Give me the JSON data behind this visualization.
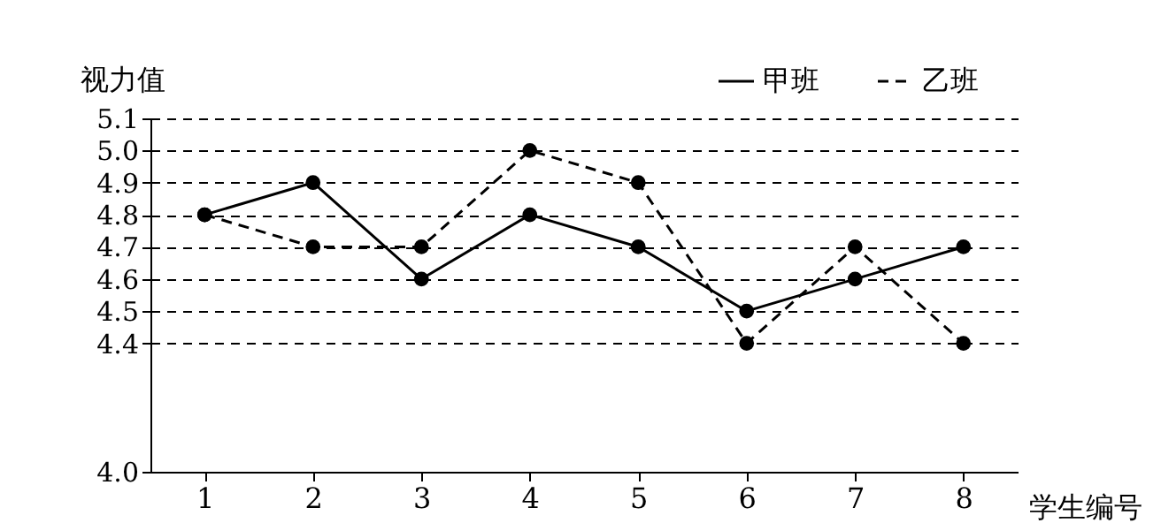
{
  "chart_data": {
    "type": "line",
    "xlabel": "学生编号",
    "ylabel": "视力值",
    "categories": [
      "1",
      "2",
      "3",
      "4",
      "5",
      "6",
      "7",
      "8"
    ],
    "series": [
      {
        "name": "甲班",
        "color": "#000000",
        "line_style": "solid",
        "values": [
          4.8,
          4.9,
          4.6,
          4.8,
          4.7,
          4.5,
          4.6,
          4.7
        ]
      },
      {
        "name": "乙班",
        "color": "#000000",
        "line_style": "dashed",
        "values": [
          4.8,
          4.7,
          4.7,
          5.0,
          4.9,
          4.4,
          4.7,
          4.4
        ]
      }
    ],
    "ylim": [
      4.0,
      5.1
    ],
    "yticks": [
      {
        "value": 4.0,
        "label": "4.0"
      },
      4.4,
      4.5,
      4.6,
      4.7,
      4.8,
      4.9,
      {
        "value": 5.0,
        "label": "5.0"
      },
      5.1
    ],
    "grid": "y",
    "legend": "top right",
    "marker": "circle"
  }
}
